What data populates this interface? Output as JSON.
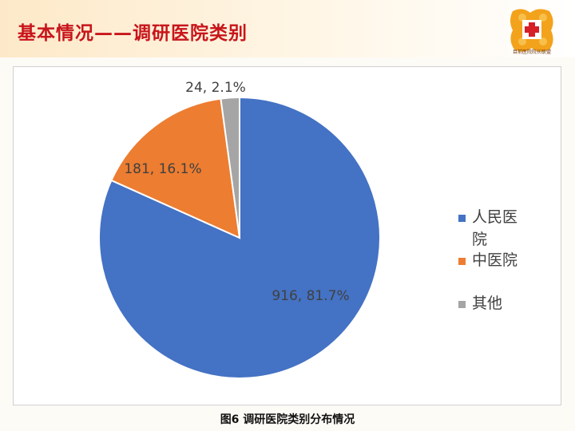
{
  "header": {
    "title": "基本情况——调研医院类别"
  },
  "colors": {
    "header_title": "#c8151b",
    "brand_orange": "#f3a21c",
    "brand_red": "#d61f26"
  },
  "logo": {
    "icon": "hospital-cross-logo",
    "caption": "目前医院院长联盟"
  },
  "chart_data": {
    "type": "pie",
    "title": "",
    "categories": [
      "人民医院",
      "中医院",
      "其他"
    ],
    "values": [
      916,
      181,
      24
    ],
    "percentages": [
      81.7,
      16.1,
      2.1
    ],
    "data_labels": [
      "916, 81.7%",
      "181, 16.1%",
      "24, 2.1%"
    ],
    "colors": [
      "#4472c4",
      "#ed7d31",
      "#a5a5a5"
    ],
    "start_angle": "12 o'clock",
    "direction": "clockwise",
    "legend_position": "right"
  },
  "caption": "图6  调研医院类别分布情况"
}
